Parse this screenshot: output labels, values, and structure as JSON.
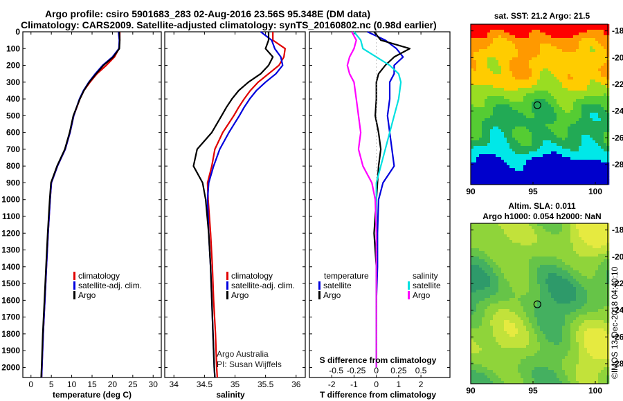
{
  "title_line1": "Argo profile: csiro 5901683_283 02-Aug-2016 23.56S 95.348E (DM data)",
  "title_line2": "Climatology: CARS2009. Satellite-adjusted climatology: synTS_20160802.nc (0.98d earlier)",
  "credit_line1": "Argo Australia",
  "credit_line2": "PI: Susan Wijffels",
  "imos_stamp": "©IMOS 13-Dec-2018 04:40:10",
  "colors": {
    "climatology": "#e00000",
    "satellite": "#0000dd",
    "argo": "#000000",
    "sat_salinity": "#00e0e0",
    "argo_salinity": "#ff00ff"
  },
  "chart_data": [
    {
      "type": "line",
      "name": "temperature",
      "xlabel": "temperature (deg C)",
      "ylabel": "",
      "xlim": [
        -2,
        32
      ],
      "ylim": [
        2060,
        0
      ],
      "xticks": [
        "0",
        "5",
        "10",
        "15",
        "20",
        "25",
        "30"
      ],
      "xtick_values": [
        0,
        5,
        10,
        15,
        20,
        25,
        30
      ],
      "yticks": [
        "0",
        "100",
        "200",
        "300",
        "400",
        "500",
        "600",
        "700",
        "800",
        "900",
        "1000",
        "1100",
        "1200",
        "1300",
        "1400",
        "1500",
        "1600",
        "1700",
        "1800",
        "1900",
        "2000"
      ],
      "legend": [
        "climatology",
        "satellite-adj. clim.",
        "Argo"
      ],
      "series": [
        {
          "name": "climatology",
          "depth": [
            0,
            50,
            100,
            150,
            200,
            250,
            300,
            350,
            400,
            500,
            600,
            700,
            800,
            900,
            1000,
            1200,
            1400,
            1600,
            1800,
            2000,
            2060
          ],
          "values": [
            21.8,
            21.8,
            21.6,
            20.5,
            18.5,
            16.2,
            14.5,
            13.0,
            12.0,
            10.5,
            9.6,
            8.4,
            6.5,
            5.0,
            4.7,
            4.2,
            3.8,
            3.4,
            3.0,
            2.7,
            2.6
          ]
        },
        {
          "name": "satellite-adj. clim.",
          "depth": [
            0,
            50,
            100,
            150,
            200,
            250,
            300,
            350,
            400,
            500,
            600,
            700,
            800,
            900,
            1000,
            1200,
            1400,
            1600,
            1800,
            2000,
            2060
          ],
          "values": [
            21.5,
            21.7,
            21.6,
            20.0,
            17.6,
            15.8,
            14.2,
            12.9,
            11.9,
            10.5,
            9.6,
            8.4,
            6.5,
            5.0,
            4.7,
            4.2,
            3.8,
            3.4,
            3.0,
            2.7,
            2.6
          ]
        },
        {
          "name": "Argo",
          "depth": [
            0,
            50,
            100,
            150,
            200,
            250,
            300,
            350,
            400,
            500,
            600,
            700,
            800,
            900,
            1000,
            1200,
            1400,
            1600,
            1800,
            2000,
            2060
          ],
          "values": [
            21.7,
            21.8,
            21.7,
            20.2,
            17.8,
            16.0,
            14.3,
            13.0,
            12.0,
            10.4,
            9.5,
            8.3,
            6.4,
            4.9,
            4.6,
            4.1,
            3.7,
            3.3,
            2.9,
            2.6,
            2.5
          ]
        }
      ]
    },
    {
      "type": "line",
      "name": "salinity",
      "xlabel": "salinity",
      "xlim": [
        33.85,
        36.15
      ],
      "ylim": [
        2060,
        0
      ],
      "xticks": [
        "34",
        "34.5",
        "35",
        "35.5",
        "36"
      ],
      "xtick_values": [
        34,
        34.5,
        35,
        35.5,
        36
      ],
      "legend": [
        "climatology",
        "satellite-adj. clim.",
        "Argo"
      ],
      "series": [
        {
          "name": "climatology",
          "depth": [
            0,
            50,
            100,
            150,
            200,
            250,
            300,
            350,
            400,
            450,
            500,
            600,
            700,
            800,
            900,
            1000,
            1200,
            1400,
            1600,
            1800,
            2000,
            2060
          ],
          "values": [
            35.62,
            35.62,
            35.82,
            35.8,
            35.72,
            35.55,
            35.38,
            35.25,
            35.15,
            35.06,
            34.98,
            34.8,
            34.67,
            34.62,
            34.55,
            34.56,
            34.6,
            34.63,
            34.65,
            34.68,
            34.7,
            34.71
          ]
        },
        {
          "name": "satellite-adj. clim.",
          "depth": [
            0,
            50,
            100,
            150,
            200,
            250,
            300,
            350,
            400,
            450,
            500,
            600,
            700,
            800,
            900,
            1000,
            1200,
            1400,
            1600,
            1800,
            2000,
            2060
          ],
          "values": [
            35.42,
            35.6,
            35.65,
            35.75,
            35.78,
            35.67,
            35.5,
            35.35,
            35.24,
            35.15,
            35.07,
            34.9,
            34.75,
            34.65,
            34.57,
            34.55,
            34.57,
            34.6,
            34.62,
            34.64,
            34.66,
            34.67
          ]
        },
        {
          "name": "Argo",
          "depth": [
            0,
            50,
            100,
            150,
            200,
            250,
            300,
            350,
            400,
            450,
            500,
            600,
            700,
            800,
            900,
            1000,
            1200,
            1400,
            1600,
            1800,
            2000,
            2060
          ],
          "values": [
            35.55,
            35.55,
            35.5,
            35.62,
            35.55,
            35.42,
            35.22,
            35.06,
            34.95,
            34.86,
            34.78,
            34.62,
            34.38,
            34.32,
            34.47,
            34.52,
            34.57,
            34.6,
            34.62,
            34.64,
            34.66,
            34.67
          ]
        }
      ]
    },
    {
      "type": "line",
      "name": "differences",
      "xlabel": "T difference from climatology",
      "xlabel_top": "S difference from climatology",
      "xlim": [
        -3,
        3.3
      ],
      "ylim": [
        2060,
        0
      ],
      "xticks": [
        "-2",
        "-1",
        "0",
        "1",
        "2"
      ],
      "xtick_values": [
        -2,
        -1,
        0,
        1,
        2
      ],
      "xticks_s": [
        "-0.5",
        "-0.25",
        "0",
        "0.25",
        "0.5"
      ],
      "xtick_s_values": [
        -1.8,
        -0.9,
        0,
        1.0,
        2.0
      ],
      "legend_titles": [
        "temperature",
        "salinity"
      ],
      "legend": [
        "satellite",
        "Argo",
        "satellite",
        "Argo"
      ],
      "series": [
        {
          "name": "T satellite",
          "depth": [
            0,
            50,
            100,
            150,
            200,
            250,
            300,
            400,
            500,
            600,
            700,
            800,
            900,
            1000,
            1200,
            1400,
            1600,
            1800,
            2000
          ],
          "values": [
            -0.4,
            0.4,
            0.9,
            1.2,
            0.8,
            0.8,
            0.6,
            0.6,
            0.5,
            0.6,
            0.7,
            0.8,
            0.3,
            0.1,
            0.05,
            0.05,
            0.0,
            0.0,
            0.0
          ]
        },
        {
          "name": "T Argo",
          "depth": [
            0,
            50,
            100,
            150,
            200,
            250,
            300,
            400,
            500,
            600,
            700,
            800,
            900,
            1000,
            1200,
            1400,
            1600,
            1800,
            2000
          ],
          "values": [
            -0.1,
            0.2,
            1.5,
            0.8,
            0.4,
            0.1,
            0.0,
            0.0,
            -0.05,
            0.1,
            0.2,
            0.1,
            0.05,
            0.0,
            -0.1,
            0.0,
            0.0,
            0.0,
            0.0
          ]
        },
        {
          "name": "S satellite",
          "depth": [
            0,
            50,
            100,
            150,
            200,
            250,
            300,
            400,
            500,
            600,
            700,
            800,
            900,
            1000,
            1200,
            1400,
            1600,
            1800,
            2000
          ],
          "values": [
            -1.0,
            -0.7,
            -0.6,
            0.0,
            0.6,
            1.0,
            1.1,
            1.0,
            0.8,
            0.6,
            0.4,
            0.2,
            0.0,
            0.0,
            0.0,
            0.0,
            0.0,
            0.0,
            0.0
          ]
        },
        {
          "name": "S Argo",
          "depth": [
            0,
            50,
            100,
            150,
            200,
            250,
            300,
            400,
            500,
            600,
            700,
            800,
            900,
            1000,
            1200,
            1400,
            1600,
            1800,
            2000
          ],
          "values": [
            -1.1,
            -0.9,
            -1.0,
            -1.2,
            -1.3,
            -1.2,
            -1.0,
            -0.9,
            -0.8,
            -0.7,
            -0.8,
            -0.6,
            -0.2,
            -0.05,
            0.0,
            0.0,
            0.0,
            0.0,
            0.0
          ]
        }
      ]
    },
    {
      "type": "heatmap",
      "name": "sst_map",
      "title": "sat. SST: 21.2 Argo: 21.5",
      "xlim": [
        90,
        101
      ],
      "ylim": [
        -29.5,
        -17.5
      ],
      "xticks": [
        "90",
        "95",
        "100"
      ],
      "xtick_values": [
        90,
        95,
        100
      ],
      "yticks": [
        "-18",
        "-20",
        "-22",
        "-24",
        "-26",
        "-28"
      ],
      "ytick_values": [
        -18,
        -20,
        -22,
        -24,
        -26,
        -28
      ],
      "marker": {
        "lon": 95.35,
        "lat": -23.56
      }
    },
    {
      "type": "heatmap",
      "name": "altimetry_map",
      "title": "Altim. SLA: 0.011",
      "subtitle": "Argo h1000: 0.054 h2000: NaN",
      "xlim": [
        90,
        101
      ],
      "ylim": [
        -29.5,
        -17.5
      ],
      "xticks": [
        "90",
        "95",
        "100"
      ],
      "xtick_values": [
        90,
        95,
        100
      ],
      "yticks": [
        "-18",
        "-20",
        "-22",
        "-24",
        "-26",
        "-28"
      ],
      "ytick_values": [
        -18,
        -20,
        -22,
        -24,
        -26,
        -28
      ],
      "marker": {
        "lon": 95.35,
        "lat": -23.56
      }
    }
  ]
}
